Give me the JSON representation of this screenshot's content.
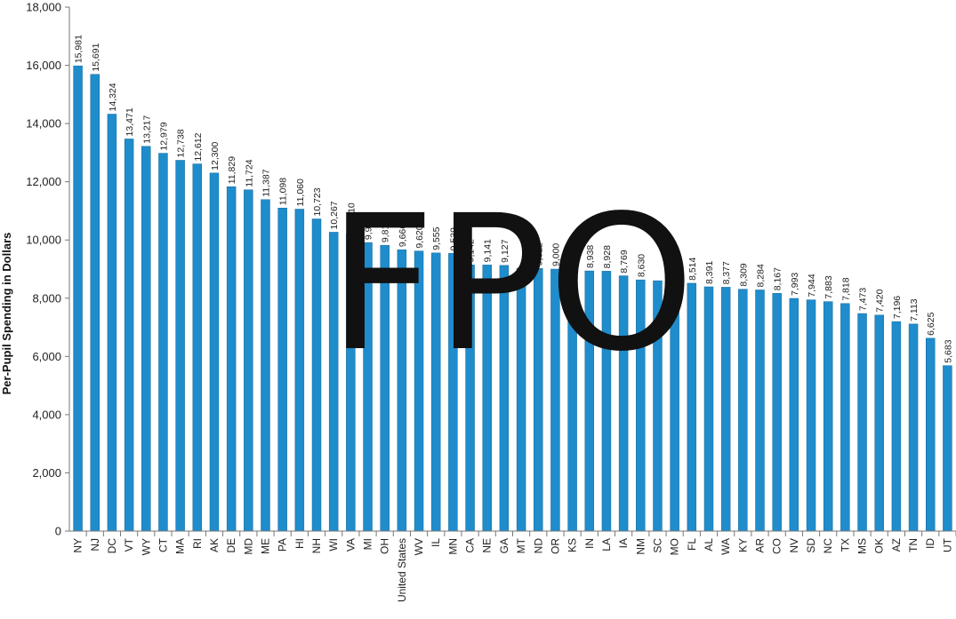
{
  "chart_data": {
    "type": "bar",
    "categories": [
      "NY",
      "NJ",
      "DC",
      "VT",
      "WY",
      "CT",
      "MA",
      "RI",
      "AK",
      "DE",
      "MD",
      "ME",
      "PA",
      "HI",
      "NH",
      "WI",
      "VA",
      "MI",
      "OH",
      "United States",
      "WV",
      "IL",
      "MN",
      "CA",
      "NE",
      "GA",
      "MT",
      "ND",
      "OR",
      "KS",
      "IN",
      "LA",
      "IA",
      "NM",
      "SC",
      "MO",
      "FL",
      "AL",
      "WA",
      "KY",
      "AR",
      "CO",
      "NV",
      "SD",
      "NC",
      "TX",
      "MS",
      "OK",
      "AZ",
      "TN",
      "ID",
      "UT"
    ],
    "values": [
      15981,
      15691,
      14324,
      13471,
      13217,
      12979,
      12738,
      12612,
      12300,
      11829,
      11724,
      11387,
      11098,
      11060,
      10723,
      10267,
      10210,
      9912,
      9819,
      9666,
      9620,
      9555,
      9539,
      9142,
      9141,
      9127,
      9030,
      9022,
      9000,
      8990,
      8938,
      8928,
      8769,
      8630,
      8600,
      8529,
      8514,
      8391,
      8377,
      8309,
      8284,
      8167,
      7993,
      7944,
      7883,
      7818,
      7473,
      7420,
      7196,
      7113,
      6625,
      5683
    ],
    "data_labels": [
      "15,981",
      "15,691",
      "14,324",
      "13,471",
      "13,217",
      "12,979",
      "12,738",
      "12,612",
      "12,300",
      "11,829",
      "11,724",
      "11,387",
      "11,098",
      "11,060",
      "10,723",
      "10,267",
      "10,210",
      "9,912",
      "9,819",
      "9,666",
      "9,620",
      "9,555",
      "9,539",
      "9,142",
      "9,141",
      "9,127",
      "",
      "9,022",
      "9,000",
      "8,990",
      "8,938",
      "8,928",
      "8,769",
      "8,630",
      "",
      "8,529",
      "8,514",
      "8,391",
      "8,377",
      "8,309",
      "8,284",
      "8,167",
      "7,993",
      "7,944",
      "7,883",
      "7,818",
      "7,473",
      "7,420",
      "7,196",
      "7,113",
      "6,625",
      "5,683"
    ],
    "ylabel": "Per-Pupil Spending in Dollars",
    "ylim": [
      0,
      18000
    ],
    "yticks": [
      0,
      2000,
      4000,
      6000,
      8000,
      10000,
      12000,
      14000,
      16000,
      18000
    ],
    "ytick_labels": [
      "0",
      "2,000",
      "4,000",
      "6,000",
      "8,000",
      "10,000",
      "12,000",
      "14,000",
      "16,000",
      "18,000"
    ],
    "bar_color": "#1f8ccc",
    "grid": false,
    "legend": "none",
    "watermark": "FPO"
  }
}
